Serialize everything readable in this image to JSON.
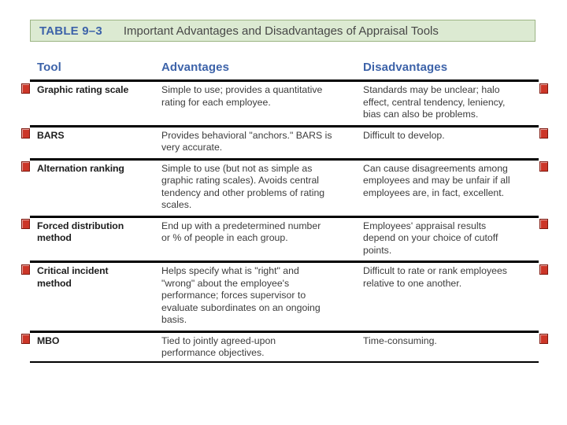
{
  "banner": {
    "label": "TABLE 9–3",
    "title": "Important Advantages and Disadvantages of Appraisal Tools"
  },
  "table": {
    "headers": [
      "Tool",
      "Advantages",
      "Disadvantages"
    ],
    "rows": [
      {
        "tool": "Graphic rating scale",
        "advantages": "Simple to use; provides a quantitative\nrating for each employee.",
        "disadvantages": "Standards may be unclear; halo\neffect, central tendency, leniency,\nbias can also be problems."
      },
      {
        "tool": "BARS",
        "advantages": "Provides behavioral \"anchors.\" BARS is\nvery accurate.",
        "disadvantages": "Difficult to develop."
      },
      {
        "tool": "Alternation ranking",
        "advantages": "Simple to use (but not as simple as\ngraphic rating scales). Avoids central\ntendency and other problems of rating\nscales.",
        "disadvantages": "Can cause disagreements among\nemployees and may be unfair if all\nemployees are, in fact, excellent."
      },
      {
        "tool": "Forced distribution\nmethod",
        "advantages": "End up with a predetermined number\nor % of people in each group.",
        "disadvantages": "Employees' appraisal results\ndepend on your choice of cutoff\npoints."
      },
      {
        "tool": "Critical incident\nmethod",
        "advantages": "Helps specify what is \"right\" and\n\"wrong\" about the employee's\nperformance; forces supervisor to\nevaluate subordinates on an ongoing\nbasis.",
        "disadvantages": "Difficult to rate or rank employees\nrelative to one another."
      },
      {
        "tool": "MBO",
        "advantages": "Tied to jointly agreed-upon\nperformance objectives.",
        "disadvantages": "Time-consuming."
      }
    ]
  },
  "markers": {
    "count": 12,
    "color": "#cc3628"
  },
  "colors": {
    "accent_blue": "#3d63a9",
    "banner_bg": "#dcead2",
    "banner_border": "#9cb584",
    "body_text": "#3c3c3c",
    "tool_text": "#1e1e1e",
    "line_black": "#000000",
    "marker_red": "#cc3628",
    "title_text": "#474747"
  }
}
